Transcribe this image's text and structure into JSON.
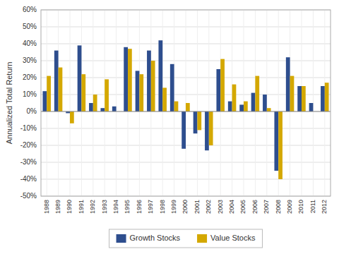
{
  "chart_data": {
    "type": "bar",
    "ylabel": "Annualized Total Return",
    "categories": [
      "1988",
      "1989",
      "1990",
      "1991",
      "1992",
      "1993",
      "1994",
      "1995",
      "1996",
      "1997",
      "1998",
      "1999",
      "2000",
      "2001",
      "2002",
      "2003",
      "2004",
      "2005",
      "2006",
      "2007",
      "2008",
      "2009",
      "2010",
      "2011",
      "2012"
    ],
    "series": [
      {
        "name": "Growth Stocks",
        "color": "#2E4E8E",
        "values": [
          12,
          36,
          -1,
          39,
          5,
          2,
          3,
          38,
          24,
          36,
          42,
          28,
          -22,
          -13,
          -23,
          25,
          6,
          4,
          11,
          10,
          -35,
          32,
          15,
          5,
          15
        ]
      },
      {
        "name": "Value Stocks",
        "color": "#D4A800",
        "values": [
          21,
          26,
          -7,
          22,
          10,
          19,
          0,
          37,
          22,
          30,
          14,
          6,
          5,
          -11,
          -20,
          31,
          16,
          6,
          21,
          2,
          -40,
          21,
          15,
          0,
          17
        ]
      }
    ],
    "ylim": [
      -50,
      60
    ],
    "yticks": [
      {
        "value": -50,
        "label": "-50%"
      },
      {
        "value": -40,
        "label": "-40%"
      },
      {
        "value": -30,
        "label": "-30%"
      },
      {
        "value": -20,
        "label": "-20%"
      },
      {
        "value": -10,
        "label": "-10%"
      },
      {
        "value": 0,
        "label": "0%"
      },
      {
        "value": 10,
        "label": "10%"
      },
      {
        "value": 20,
        "label": "20%"
      },
      {
        "value": 30,
        "label": "30%"
      },
      {
        "value": 40,
        "label": "40%"
      },
      {
        "value": 50,
        "label": "50%"
      },
      {
        "value": 60,
        "label": "60%"
      }
    ],
    "grid": true,
    "legend": "bottom"
  }
}
